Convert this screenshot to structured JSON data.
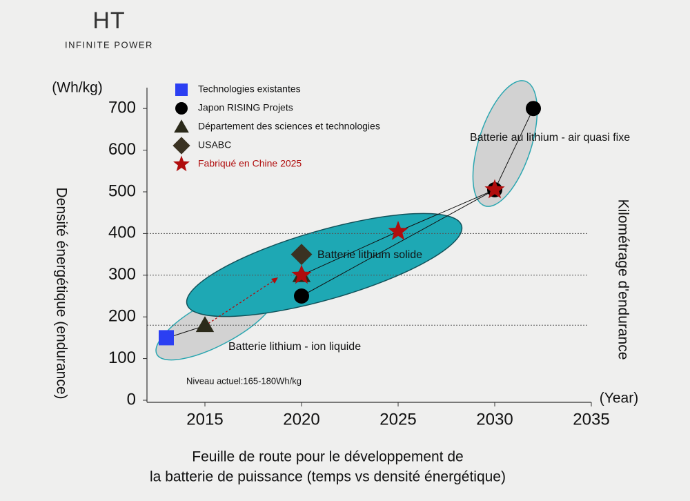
{
  "logo": {
    "mark": "HT",
    "tagline": "INFINITE POWER"
  },
  "chart_data": {
    "type": "scatter",
    "title": [
      "Feuille de route pour le développement de",
      "la batterie de puissance (temps vs densité énergétique)"
    ],
    "y_label": "Densité énergétique (endurance)",
    "y2_label": "Kilométrage d'endurance",
    "y_unit": "(Wh/kg)",
    "x_unit": "(Year)",
    "xlim": [
      2012,
      2035
    ],
    "xticks": [
      2015,
      2020,
      2025,
      2030,
      2035
    ],
    "ylim": [
      0,
      750
    ],
    "yticks": [
      0,
      100,
      200,
      300,
      400,
      500,
      600,
      700
    ],
    "reference_lines": [
      400,
      300,
      180
    ],
    "series": [
      {
        "name": "Technologies existantes",
        "color": "#2b3ff2",
        "marker": "square",
        "x": [
          2013
        ],
        "values": [
          150
        ],
        "connect": false
      },
      {
        "name": "Japon RISING Projets",
        "color": "#000000",
        "marker": "circle",
        "x": [
          2020,
          2030,
          2032
        ],
        "values": [
          250,
          505,
          700
        ],
        "connect": true
      },
      {
        "name": "Département des sciences et technologies",
        "color": "#2b2a1a",
        "marker": "triangle",
        "x": [
          2015,
          2020
        ],
        "values": [
          180,
          300
        ],
        "connect": false
      },
      {
        "name": "USABC",
        "color": "#3a3222",
        "marker": "diamond",
        "x": [
          2020
        ],
        "values": [
          350
        ],
        "connect": false
      },
      {
        "name": "Fabriqué en Chine 2025",
        "color": "#b00d0d",
        "marker": "star",
        "x": [
          2020,
          2025,
          2030
        ],
        "values": [
          300,
          405,
          505
        ],
        "connect": true
      }
    ],
    "annotations": [
      "Batterie au lithium - air quasi fixe",
      "Batterie lithium solide",
      "Batterie lithium - ion liquide",
      "Niveau actuel:165-180Wh/kg"
    ]
  }
}
